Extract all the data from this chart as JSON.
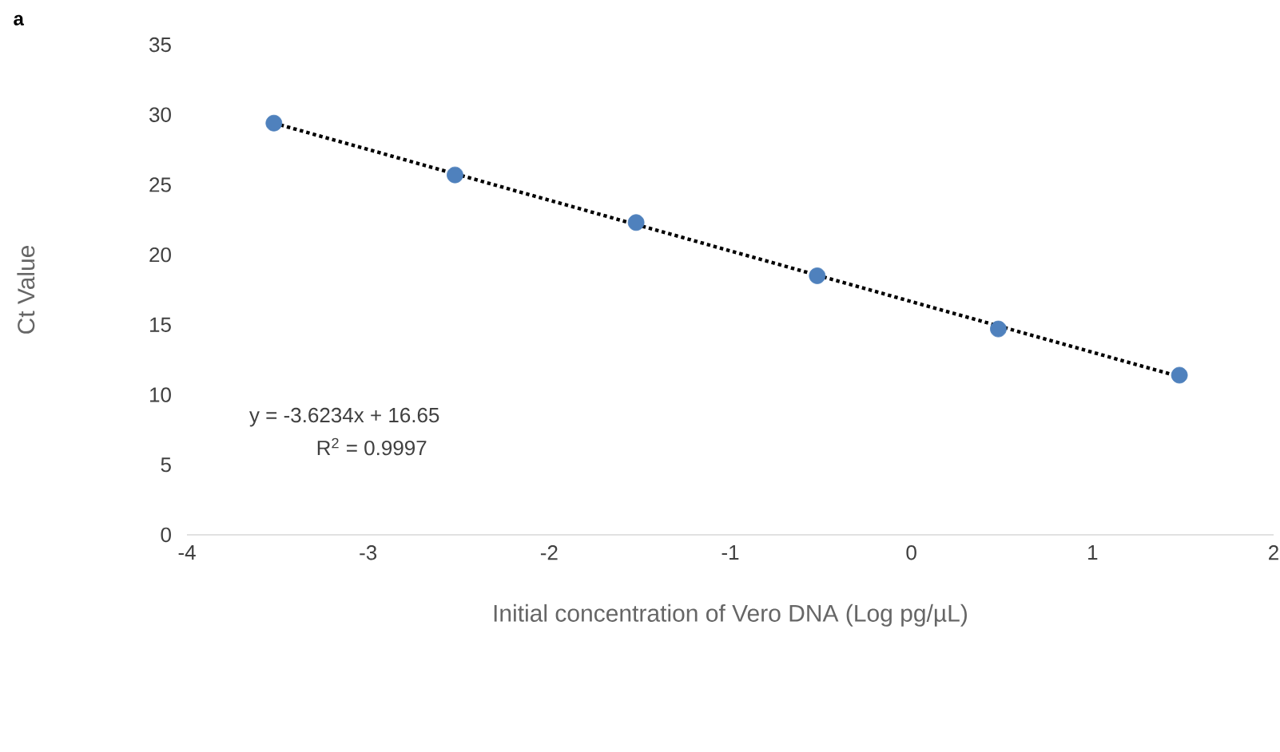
{
  "chart_data": {
    "type": "scatter",
    "xlabel": "Initial concentration of Vero DNA (Log pg/µL)",
    "ylabel": "Ct Value",
    "annotations": [
      "a",
      "y = -3.6234x + 16.65",
      "R$^{2}$ = 0.9997"
    ],
    "xlim": [
      -4,
      2
    ],
    "xticks": [
      -4,
      -3,
      -2,
      -1,
      0,
      1,
      2
    ],
    "ylim": [
      0,
      35
    ],
    "yticks": [
      0,
      5,
      10,
      15,
      20,
      25,
      30,
      35
    ],
    "grid": false,
    "series": [
      {
        "color": "#4f81bd",
        "marker": "circle",
        "x": [
          -3.52,
          -2.52,
          -1.52,
          -0.52,
          0.48,
          1.48
        ],
        "values": [
          29.4,
          25.7,
          22.3,
          18.5,
          14.7,
          11.4
        ]
      },
      {
        "type": "line",
        "color": "#000000",
        "marker": "none",
        "line_style": "dotted",
        "x": [
          -3.52,
          1.48
        ],
        "values": [
          29.4,
          11.3
        ]
      }
    ]
  }
}
